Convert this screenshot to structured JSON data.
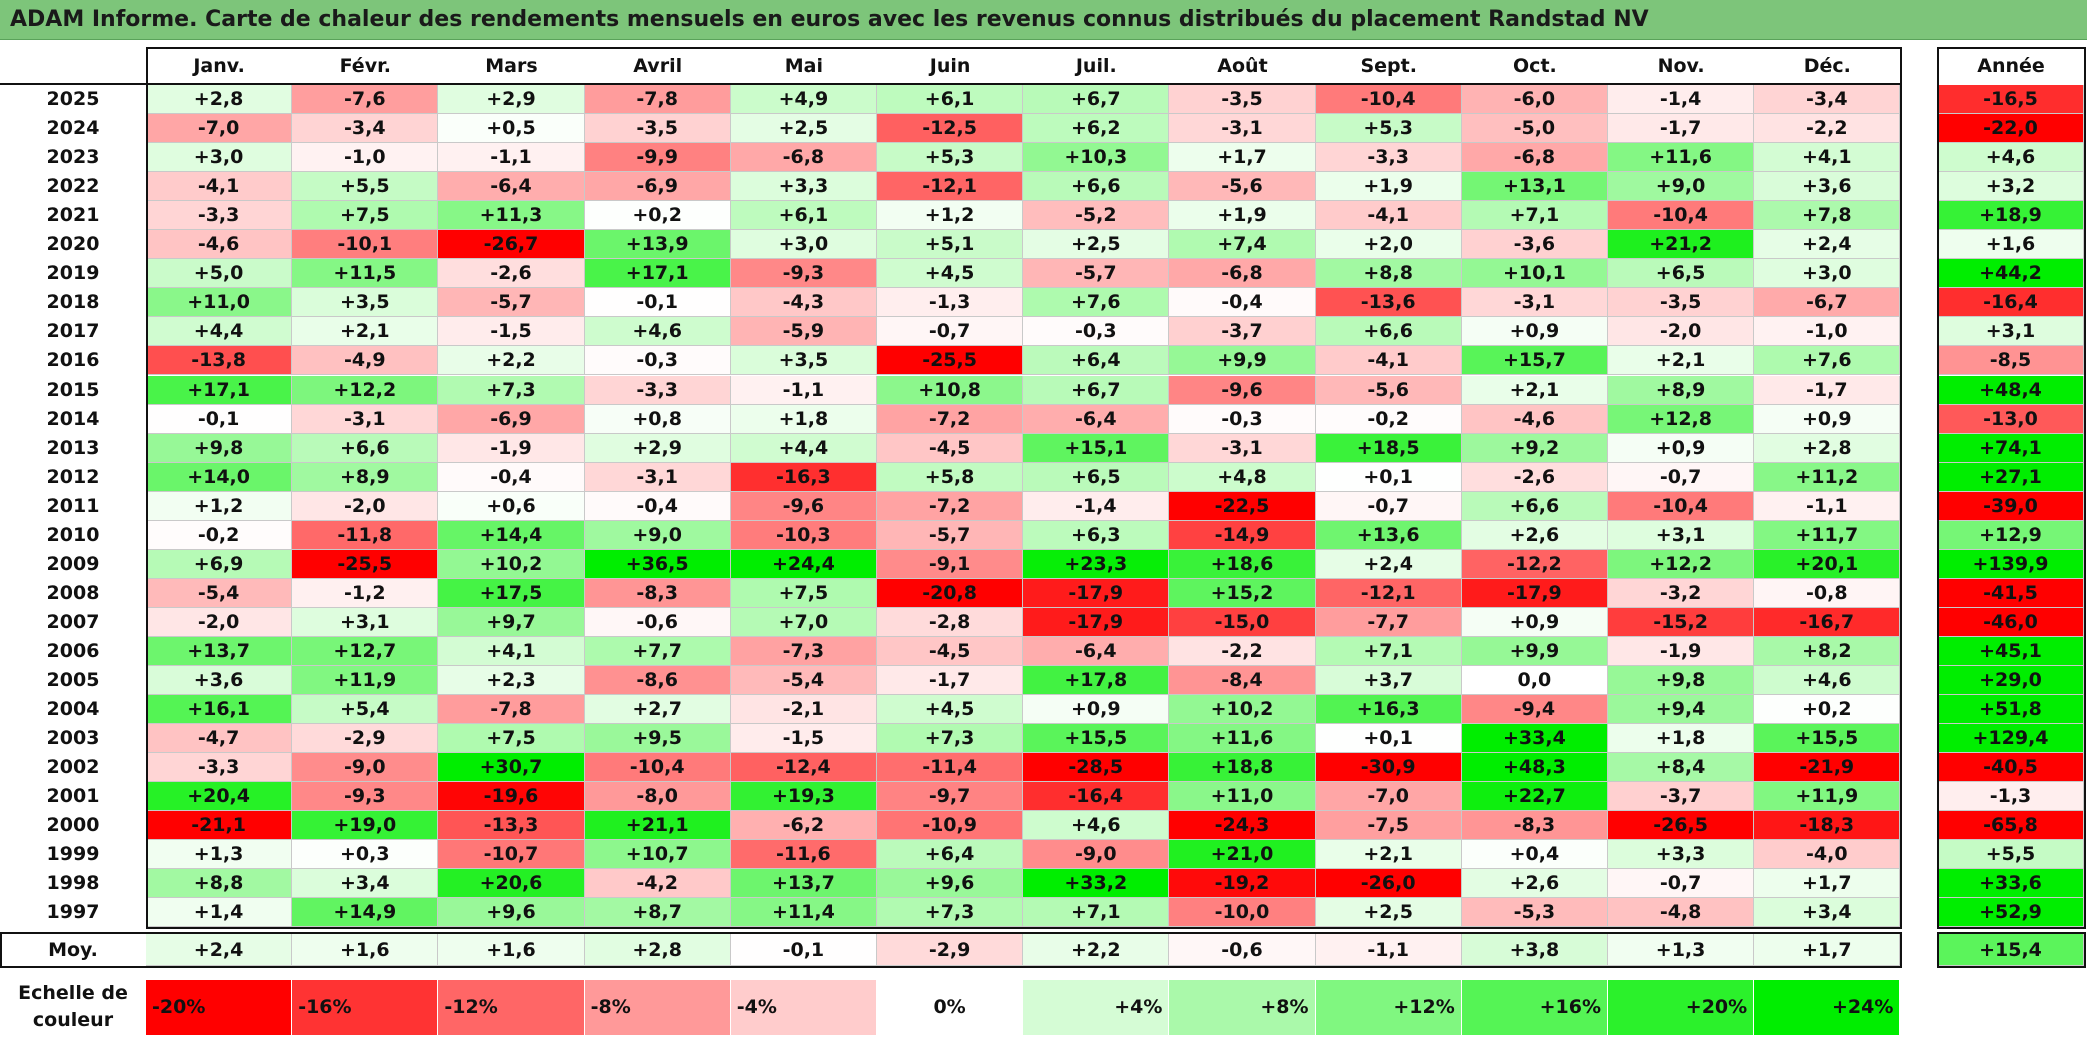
{
  "title": "ADAM Informe. Carte de chaleur des rendements mensuels en euros avec les revenus connus distribués du placement Randstad NV",
  "months": [
    "Janv.",
    "Févr.",
    "Mars",
    "Avril",
    "Mai",
    "Juin",
    "Juil.",
    "Août",
    "Sept.",
    "Oct.",
    "Nov.",
    "Déc."
  ],
  "year_header": "Année",
  "avg_label": "Moy.",
  "legend_label_line1": "Echelle de",
  "legend_label_line2": "couleur",
  "legend": [
    {
      "label": "-20%",
      "value": -20
    },
    {
      "label": "-16%",
      "value": -16
    },
    {
      "label": "-12%",
      "value": -12
    },
    {
      "label": "-8%",
      "value": -8
    },
    {
      "label": "-4%",
      "value": -4
    },
    {
      "label": "0%",
      "value": 0
    },
    {
      "label": "+4%",
      "value": 4
    },
    {
      "label": "+8%",
      "value": 8
    },
    {
      "label": "+12%",
      "value": 12
    },
    {
      "label": "+16%",
      "value": 16
    },
    {
      "label": "+20%",
      "value": 20
    },
    {
      "label": "+24%",
      "value": 24
    }
  ],
  "colors": {
    "negative_max": "#ff0000",
    "neutral": "#ffffff",
    "positive_max": "#00ee00",
    "title_bar": "#7dc57a"
  },
  "chart_data": {
    "type": "heatmap",
    "title": "ADAM Informe. Carte de chaleur des rendements mensuels en euros avec les revenus connus distribués du placement Randstad NV",
    "color_scale": [
      -20,
      24
    ],
    "rows": [
      {
        "year": "2025",
        "values": [
          "+2,8",
          "-7,6",
          "+2,9",
          "-7,8",
          "+4,9",
          "+6,1",
          "+6,7",
          "-3,5",
          "-10,4",
          "-6,0",
          "-1,4",
          "-3,4"
        ],
        "total": "-16,5"
      },
      {
        "year": "2024",
        "values": [
          "-7,0",
          "-3,4",
          "+0,5",
          "-3,5",
          "+2,5",
          "-12,5",
          "+6,2",
          "-3,1",
          "+5,3",
          "-5,0",
          "-1,7",
          "-2,2"
        ],
        "total": "-22,0"
      },
      {
        "year": "2023",
        "values": [
          "+3,0",
          "-1,0",
          "-1,1",
          "-9,9",
          "-6,8",
          "+5,3",
          "+10,3",
          "+1,7",
          "-3,3",
          "-6,8",
          "+11,6",
          "+4,1"
        ],
        "total": "+4,6"
      },
      {
        "year": "2022",
        "values": [
          "-4,1",
          "+5,5",
          "-6,4",
          "-6,9",
          "+3,3",
          "-12,1",
          "+6,6",
          "-5,6",
          "+1,9",
          "+13,1",
          "+9,0",
          "+3,6"
        ],
        "total": "+3,2"
      },
      {
        "year": "2021",
        "values": [
          "-3,3",
          "+7,5",
          "+11,3",
          "+0,2",
          "+6,1",
          "+1,2",
          "-5,2",
          "+1,9",
          "-4,1",
          "+7,1",
          "-10,4",
          "+7,8"
        ],
        "total": "+18,9"
      },
      {
        "year": "2020",
        "values": [
          "-4,6",
          "-10,1",
          "-26,7",
          "+13,9",
          "+3,0",
          "+5,1",
          "+2,5",
          "+7,4",
          "+2,0",
          "-3,6",
          "+21,2",
          "+2,4"
        ],
        "total": "+1,6"
      },
      {
        "year": "2019",
        "values": [
          "+5,0",
          "+11,5",
          "-2,6",
          "+17,1",
          "-9,3",
          "+4,5",
          "-5,7",
          "-6,8",
          "+8,8",
          "+10,1",
          "+6,5",
          "+3,0"
        ],
        "total": "+44,2"
      },
      {
        "year": "2018",
        "values": [
          "+11,0",
          "+3,5",
          "-5,7",
          "-0,1",
          "-4,3",
          "-1,3",
          "+7,6",
          "-0,4",
          "-13,6",
          "-3,1",
          "-3,5",
          "-6,7"
        ],
        "total": "-16,4"
      },
      {
        "year": "2017",
        "values": [
          "+4,4",
          "+2,1",
          "-1,5",
          "+4,6",
          "-5,9",
          "-0,7",
          "-0,3",
          "-3,7",
          "+6,6",
          "+0,9",
          "-2,0",
          "-1,0"
        ],
        "total": "+3,1"
      },
      {
        "year": "2016",
        "values": [
          "-13,8",
          "-4,9",
          "+2,2",
          "-0,3",
          "+3,5",
          "-25,5",
          "+6,4",
          "+9,9",
          "-4,1",
          "+15,7",
          "+2,1",
          "+7,6"
        ],
        "total": "-8,5"
      },
      {
        "year": "2015",
        "values": [
          "+17,1",
          "+12,2",
          "+7,3",
          "-3,3",
          "-1,1",
          "+10,8",
          "+6,7",
          "-9,6",
          "-5,6",
          "+2,1",
          "+8,9",
          "-1,7"
        ],
        "total": "+48,4"
      },
      {
        "year": "2014",
        "values": [
          "-0,1",
          "-3,1",
          "-6,9",
          "+0,8",
          "+1,8",
          "-7,2",
          "-6,4",
          "-0,3",
          "-0,2",
          "-4,6",
          "+12,8",
          "+0,9"
        ],
        "total": "-13,0"
      },
      {
        "year": "2013",
        "values": [
          "+9,8",
          "+6,6",
          "-1,9",
          "+2,9",
          "+4,4",
          "-4,5",
          "+15,1",
          "-3,1",
          "+18,5",
          "+9,2",
          "+0,9",
          "+2,8"
        ],
        "total": "+74,1"
      },
      {
        "year": "2012",
        "values": [
          "+14,0",
          "+8,9",
          "-0,4",
          "-3,1",
          "-16,3",
          "+5,8",
          "+6,5",
          "+4,8",
          "+0,1",
          "-2,6",
          "-0,7",
          "+11,2"
        ],
        "total": "+27,1"
      },
      {
        "year": "2011",
        "values": [
          "+1,2",
          "-2,0",
          "+0,6",
          "-0,4",
          "-9,6",
          "-7,2",
          "-1,4",
          "-22,5",
          "-0,7",
          "+6,6",
          "-10,4",
          "-1,1"
        ],
        "total": "-39,0"
      },
      {
        "year": "2010",
        "values": [
          "-0,2",
          "-11,8",
          "+14,4",
          "+9,0",
          "-10,3",
          "-5,7",
          "+6,3",
          "-14,9",
          "+13,6",
          "+2,6",
          "+3,1",
          "+11,7"
        ],
        "total": "+12,9"
      },
      {
        "year": "2009",
        "values": [
          "+6,9",
          "-25,5",
          "+10,2",
          "+36,5",
          "+24,4",
          "-9,1",
          "+23,3",
          "+18,6",
          "+2,4",
          "-12,2",
          "+12,2",
          "+20,1"
        ],
        "total": "+139,9"
      },
      {
        "year": "2008",
        "values": [
          "-5,4",
          "-1,2",
          "+17,5",
          "-8,3",
          "+7,5",
          "-20,8",
          "-17,9",
          "+15,2",
          "-12,1",
          "-17,9",
          "-3,2",
          "-0,8"
        ],
        "total": "-41,5"
      },
      {
        "year": "2007",
        "values": [
          "-2,0",
          "+3,1",
          "+9,7",
          "-0,6",
          "+7,0",
          "-2,8",
          "-17,9",
          "-15,0",
          "-7,7",
          "+0,9",
          "-15,2",
          "-16,7"
        ],
        "total": "-46,0"
      },
      {
        "year": "2006",
        "values": [
          "+13,7",
          "+12,7",
          "+4,1",
          "+7,7",
          "-7,3",
          "-4,5",
          "-6,4",
          "-2,2",
          "+7,1",
          "+9,9",
          "-1,9",
          "+8,2"
        ],
        "total": "+45,1"
      },
      {
        "year": "2005",
        "values": [
          "+3,6",
          "+11,9",
          "+2,3",
          "-8,6",
          "-5,4",
          "-1,7",
          "+17,8",
          "-8,4",
          "+3,7",
          "0,0",
          "+9,8",
          "+4,6"
        ],
        "total": "+29,0"
      },
      {
        "year": "2004",
        "values": [
          "+16,1",
          "+5,4",
          "-7,8",
          "+2,7",
          "-2,1",
          "+4,5",
          "+0,9",
          "+10,2",
          "+16,3",
          "-9,4",
          "+9,4",
          "+0,2"
        ],
        "total": "+51,8"
      },
      {
        "year": "2003",
        "values": [
          "-4,7",
          "-2,9",
          "+7,5",
          "+9,5",
          "-1,5",
          "+7,3",
          "+15,5",
          "+11,6",
          "+0,1",
          "+33,4",
          "+1,8",
          "+15,5"
        ],
        "total": "+129,4"
      },
      {
        "year": "2002",
        "values": [
          "-3,3",
          "-9,0",
          "+30,7",
          "-10,4",
          "-12,4",
          "-11,4",
          "-28,5",
          "+18,8",
          "-30,9",
          "+48,3",
          "+8,4",
          "-21,9"
        ],
        "total": "-40,5"
      },
      {
        "year": "2001",
        "values": [
          "+20,4",
          "-9,3",
          "-19,6",
          "-8,0",
          "+19,3",
          "-9,7",
          "-16,4",
          "+11,0",
          "-7,0",
          "+22,7",
          "-3,7",
          "+11,9"
        ],
        "total": "-1,3"
      },
      {
        "year": "2000",
        "values": [
          "-21,1",
          "+19,0",
          "-13,3",
          "+21,1",
          "-6,2",
          "-10,9",
          "+4,6",
          "-24,3",
          "-7,5",
          "-8,3",
          "-26,5",
          "-18,3"
        ],
        "total": "-65,8"
      },
      {
        "year": "1999",
        "values": [
          "+1,3",
          "+0,3",
          "-10,7",
          "+10,7",
          "-11,6",
          "+6,4",
          "-9,0",
          "+21,0",
          "+2,1",
          "+0,4",
          "+3,3",
          "-4,0"
        ],
        "total": "+5,5"
      },
      {
        "year": "1998",
        "values": [
          "+8,8",
          "+3,4",
          "+20,6",
          "-4,2",
          "+13,7",
          "+9,6",
          "+33,2",
          "-19,2",
          "-26,0",
          "+2,6",
          "-0,7",
          "+1,7"
        ],
        "total": "+33,6"
      },
      {
        "year": "1997",
        "values": [
          "+1,4",
          "+14,9",
          "+9,6",
          "+8,7",
          "+11,4",
          "+7,3",
          "+7,1",
          "-10,0",
          "+2,5",
          "-5,3",
          "-4,8",
          "+3,4"
        ],
        "total": "+52,9"
      }
    ],
    "average": {
      "values": [
        "+2,4",
        "+1,6",
        "+1,6",
        "+2,8",
        "-0,1",
        "-2,9",
        "+2,2",
        "-0,6",
        "-1,1",
        "+3,8",
        "+1,3",
        "+1,7"
      ],
      "total": "+15,4"
    }
  }
}
